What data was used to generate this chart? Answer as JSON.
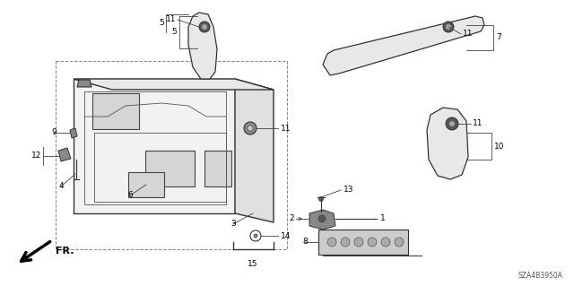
{
  "bg_color": "#ffffff",
  "diagram_code": "SZA4B3950A",
  "line_color": "#333333",
  "label_color": "#000000",
  "lw_main": 1.0,
  "lw_thin": 0.6,
  "label_fs": 6.5
}
